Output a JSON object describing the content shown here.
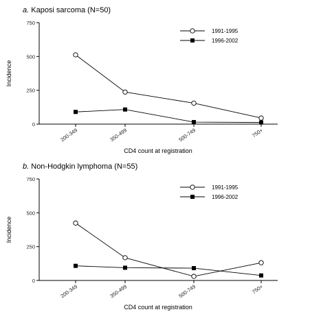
{
  "chart_data": [
    {
      "type": "line",
      "panel_letter": "a.",
      "title": "Kaposi sarcoma (N=50)",
      "xlabel": "CD4 count at registration",
      "ylabel": "Incidence",
      "categories": [
        "200-349",
        "350-499",
        "500-749",
        "750+"
      ],
      "ylim": [
        0,
        750
      ],
      "yticks": [
        "0",
        "250",
        "500",
        "750"
      ],
      "grid": false,
      "legend_position": "upper-right",
      "series": [
        {
          "name": "1991-1995",
          "marker": "open-circle",
          "values": [
            512,
            237,
            155,
            45
          ]
        },
        {
          "name": "1996-2002",
          "marker": "filled-square",
          "values": [
            90,
            108,
            15,
            12
          ]
        }
      ]
    },
    {
      "type": "line",
      "panel_letter": "b.",
      "title": "Non-Hodgkin lymphoma (N=55)",
      "xlabel": "CD4 count at registration",
      "ylabel": "Incidence",
      "categories": [
        "200-349",
        "350-499",
        "500-749",
        "750+"
      ],
      "ylim": [
        0,
        750
      ],
      "yticks": [
        "0",
        "250",
        "500",
        "750"
      ],
      "grid": false,
      "legend_position": "upper-right",
      "series": [
        {
          "name": "1991-1995",
          "marker": "open-circle",
          "values": [
            424,
            168,
            30,
            131
          ]
        },
        {
          "name": "1996-2002",
          "marker": "filled-square",
          "values": [
            108,
            94,
            91,
            37
          ]
        }
      ]
    }
  ]
}
